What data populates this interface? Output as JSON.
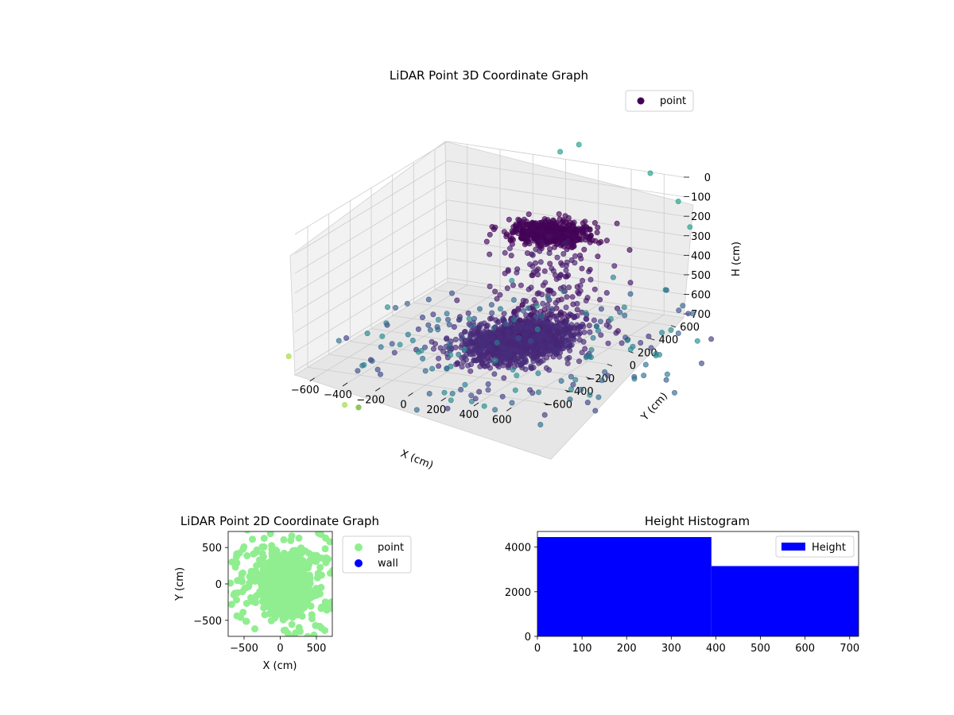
{
  "chart_data": [
    {
      "type": "scatter",
      "title": "LiDAR Point 3D Coordinate Graph",
      "xlabel": "X (cm)",
      "ylabel": "Y (cm)",
      "zlabel": "H (cm)",
      "xlim": [
        -720,
        720
      ],
      "ylim": [
        -720,
        720
      ],
      "zlim": [
        720,
        0
      ],
      "xticks": [
        -600,
        -400,
        -200,
        0,
        200,
        400,
        600
      ],
      "yticks": [
        -600,
        -400,
        -200,
        0,
        200,
        400,
        600
      ],
      "zticks": [
        0,
        100,
        200,
        300,
        400,
        500,
        600,
        700
      ],
      "grid": true,
      "legend": {
        "position": "top-right",
        "entries": [
          {
            "label": "point",
            "color": "#440154"
          }
        ]
      },
      "colormap": "viridis",
      "series": [
        {
          "name": "point",
          "description_only": false
        }
      ]
    },
    {
      "type": "scatter",
      "title": "LiDAR Point 2D Coordinate Graph",
      "xlabel": "X (cm)",
      "ylabel": "Y (cm)",
      "xlim": [
        -720,
        720
      ],
      "ylim": [
        -720,
        720
      ],
      "xticks": [
        -500,
        0,
        500
      ],
      "yticks": [
        -500,
        0,
        500
      ],
      "legend": {
        "position": "outside-right",
        "entries": [
          {
            "label": "point",
            "color": "#90ee90"
          },
          {
            "label": "wall",
            "color": "#0000ff"
          }
        ]
      },
      "series": [
        {
          "name": "point",
          "color": "#90ee90"
        },
        {
          "name": "wall",
          "color": "#0000ff",
          "values": []
        }
      ]
    },
    {
      "type": "bar",
      "title": "Height Histogram",
      "xlim": [
        0,
        720
      ],
      "ylim": [
        0,
        4700
      ],
      "xticks": [
        0,
        100,
        200,
        300,
        400,
        500,
        600,
        700
      ],
      "yticks": [
        0,
        2000,
        4000
      ],
      "legend": {
        "position": "top-right",
        "entries": [
          {
            "label": "Height",
            "color": "#0000ff"
          }
        ]
      },
      "bins": [
        {
          "from": 0,
          "to": 390,
          "count": 4450
        },
        {
          "from": 390,
          "to": 720,
          "count": 3150
        }
      ],
      "color": "#0000ff"
    }
  ]
}
